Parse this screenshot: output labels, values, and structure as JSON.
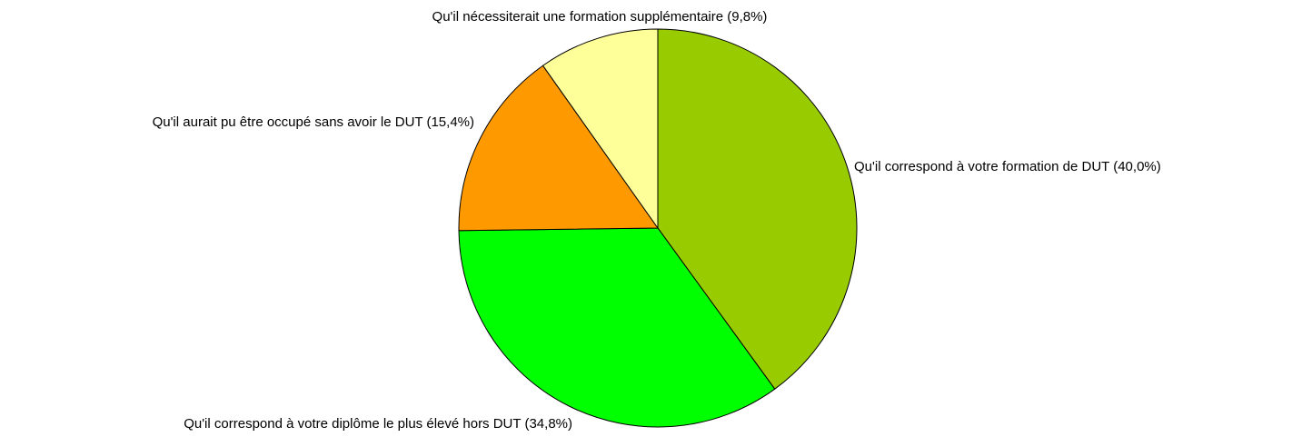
{
  "chart_data": {
    "type": "pie",
    "categories": [
      "Qu'il correspond à votre formation de DUT",
      "Qu'il correspond à votre diplôme le plus élevé hors DUT",
      "Qu'il aurait pu être occupé sans avoir le DUT",
      "Qu'il nécessiterait une formation supplémentaire"
    ],
    "values": [
      40.0,
      34.8,
      15.4,
      9.8
    ],
    "value_labels": [
      "(40,0%)",
      "(34,8%)",
      "(15,4%)",
      "(9,8%)"
    ],
    "colors": [
      "#99cc00",
      "#00ff00",
      "#ff9900",
      "#ffff99"
    ]
  }
}
